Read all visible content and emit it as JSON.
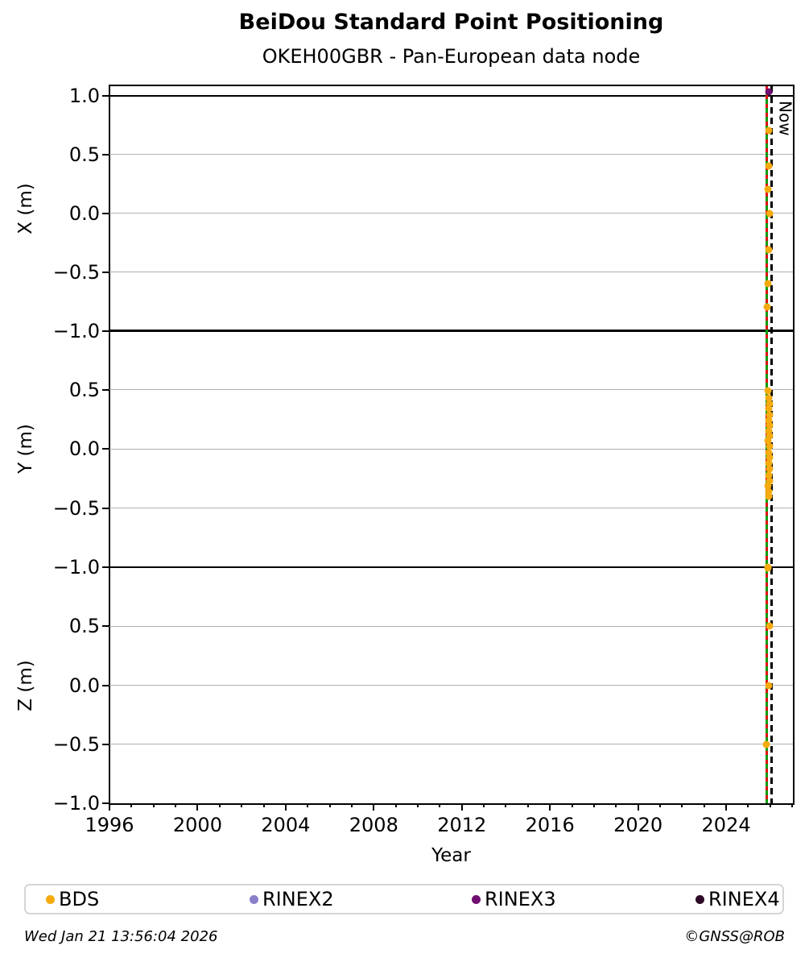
{
  "title": "BeiDou Standard Point Positioning",
  "subtitle": "OKEH00GBR - Pan-European data node",
  "footer": {
    "timestamp": "Wed Jan 21 13:56:04 2026",
    "credit": "©GNSS@ROB"
  },
  "colors": {
    "bds": "#F5AB0F",
    "rinex2": "#8A7FC9",
    "rinex3": "#6F0D71",
    "rinex4": "#2D0A28",
    "event_line_green": "#0B9B0B",
    "event_line_red": "#DE1010",
    "now_line": "#000000",
    "grid": "#B0B0B0"
  },
  "legend": [
    {
      "label": "BDS",
      "color_key": "bds"
    },
    {
      "label": "RINEX2",
      "color_key": "rinex2"
    },
    {
      "label": "RINEX3",
      "color_key": "rinex3"
    },
    {
      "label": "RINEX4",
      "color_key": "rinex4"
    }
  ],
  "chart_data": {
    "type": "scatter",
    "x_axis": {
      "label": "Year",
      "range": [
        1996,
        2027.03
      ],
      "major_ticks": [
        1996,
        2000,
        2004,
        2008,
        2012,
        2016,
        2020,
        2024
      ],
      "major_tick_labels": [
        "1996",
        "2000",
        "2004",
        "2008",
        "2012",
        "2016",
        "2020",
        "2024"
      ],
      "minor_tick_interval": 1
    },
    "panels": [
      {
        "name": "X (m)",
        "ylim": [
          -1.0,
          1.08
        ],
        "yticks": [
          {
            "label": "1.0",
            "value": 1.0
          },
          {
            "label": "0.5",
            "value": 0.5
          },
          {
            "label": "0.0",
            "value": 0.0
          },
          {
            "label": "−0.5",
            "value": -0.5
          },
          {
            "label": "−1.0",
            "value": -1.0
          }
        ],
        "bound_lines": [
          1.0
        ],
        "series": [
          {
            "name": "BDS",
            "color_key": "bds",
            "points": [
              [
                2025.93,
                0.7
              ],
              [
                2025.95,
                0.4
              ],
              [
                2025.9,
                0.2
              ],
              [
                2025.96,
                0.0
              ],
              [
                2025.94,
                -0.31
              ],
              [
                2025.88,
                -0.6
              ],
              [
                2025.87,
                -0.8
              ]
            ]
          },
          {
            "name": "RINEX3",
            "color_key": "rinex3",
            "points": [
              [
                2025.95,
                1.03
              ]
            ]
          }
        ]
      },
      {
        "name": "Y (m)",
        "ylim": [
          -1.0,
          1.0
        ],
        "yticks": [
          {
            "label": "0.5",
            "value": 0.5
          },
          {
            "label": "0.0",
            "value": 0.0
          },
          {
            "label": "−0.5",
            "value": -0.5
          },
          {
            "label": "−1.0",
            "value": -1.0
          }
        ],
        "bound_lines": [],
        "series": [
          {
            "name": "BDS",
            "color_key": "bds",
            "points": [
              [
                2025.9,
                0.49
              ],
              [
                2025.94,
                0.43
              ],
              [
                2025.96,
                0.38
              ],
              [
                2025.92,
                0.34
              ],
              [
                2025.97,
                0.29
              ],
              [
                2025.94,
                0.24
              ],
              [
                2025.98,
                0.2
              ],
              [
                2025.93,
                0.15
              ],
              [
                2025.96,
                0.11
              ],
              [
                2025.91,
                0.07
              ],
              [
                2025.97,
                0.02
              ],
              [
                2025.94,
                -0.03
              ],
              [
                2025.98,
                -0.07
              ],
              [
                2025.92,
                -0.12
              ],
              [
                2025.96,
                -0.17
              ],
              [
                2025.93,
                -0.22
              ],
              [
                2025.97,
                -0.27
              ],
              [
                2025.9,
                -0.31
              ],
              [
                2025.95,
                -0.36
              ],
              [
                2025.92,
                -0.4
              ],
              [
                2025.88,
                -1.0
              ]
            ]
          }
        ]
      },
      {
        "name": "Z (m)",
        "ylim": [
          -1.0,
          1.0
        ],
        "yticks": [
          {
            "label": "0.5",
            "value": 0.5
          },
          {
            "label": "0.0",
            "value": 0.0
          },
          {
            "label": "−0.5",
            "value": -0.5
          },
          {
            "label": "−1.0",
            "value": -1.0
          }
        ],
        "bound_lines": [],
        "series": [
          {
            "name": "BDS",
            "color_key": "bds",
            "points": [
              [
                2025.9,
                0.99
              ],
              [
                2025.96,
                0.5
              ],
              [
                2025.93,
                0.0
              ],
              [
                2025.84,
                -0.5
              ]
            ]
          }
        ]
      }
    ],
    "annotations": {
      "event_line_x": 2025.86,
      "now_line_x": 2026.06,
      "now_label": "Now"
    },
    "grid": "horizontal-only",
    "legend_position": "bottom"
  }
}
